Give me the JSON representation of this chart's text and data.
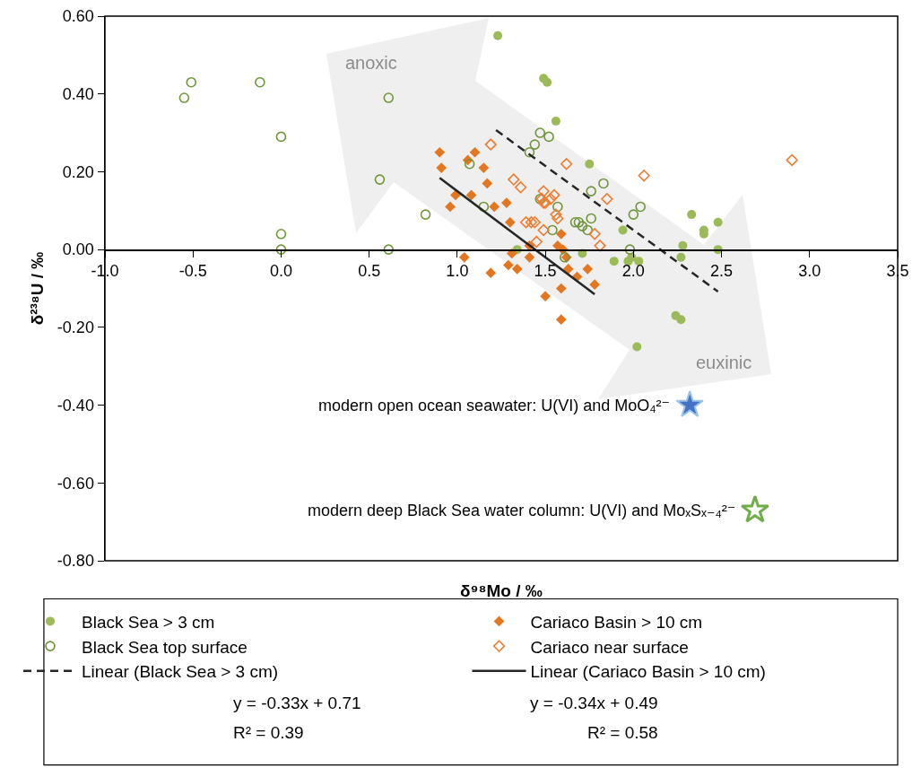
{
  "chart_data": {
    "type": "scatter",
    "xlabel": "δ⁹⁸Mo / ‰",
    "ylabel": "δ²³⁸U / ‰",
    "xlim": [
      -1,
      3.5
    ],
    "xticks": [
      {
        "value": -1,
        "label": "-1.0"
      },
      {
        "value": -0.5,
        "label": "-0.5"
      },
      {
        "value": 0,
        "label": "0.0"
      },
      {
        "value": 0.5,
        "label": "0.5"
      },
      {
        "value": 1,
        "label": "1.0"
      },
      {
        "value": 1.5,
        "label": "1.5"
      },
      {
        "value": 2,
        "label": "2.0"
      },
      {
        "value": 2.5,
        "label": "2.5"
      },
      {
        "value": 3,
        "label": "3.0"
      },
      {
        "value": 3.5,
        "label": "3.5"
      }
    ],
    "ylim": [
      -0.8,
      0.6
    ],
    "yticks": [
      {
        "value": -0.8,
        "label": "-0.80"
      },
      {
        "value": -0.6,
        "label": "-0.60"
      },
      {
        "value": -0.4,
        "label": "-0.40"
      },
      {
        "value": -0.2,
        "label": "-0.20"
      },
      {
        "value": 0,
        "label": "0.00"
      },
      {
        "value": 0.2,
        "label": "0.20"
      },
      {
        "value": 0.4,
        "label": "0.40"
      },
      {
        "value": 0.6,
        "label": "0.60"
      }
    ],
    "grid": false,
    "legend": "bottom",
    "series": [
      {
        "name": "Black Sea > 3 cm",
        "color": "#9bbb59",
        "marker": "circle",
        "x": [
          1.23,
          1.49,
          1.51,
          1.56,
          1.75,
          2.33,
          2.4,
          2.4,
          2.48,
          1.94,
          2.28,
          2.27,
          2.48,
          1.71,
          1.89,
          1.97,
          1.99,
          2.03,
          2.24,
          2.27,
          2.02,
          1.34
        ],
        "values": [
          0.55,
          0.44,
          0.43,
          0.33,
          0.22,
          0.09,
          0.05,
          0.04,
          0.07,
          0.05,
          0.01,
          -0.02,
          0.0,
          -0.01,
          -0.03,
          -0.03,
          -0.02,
          -0.03,
          -0.17,
          -0.18,
          -0.25,
          0.0
        ]
      },
      {
        "name": "Cariaco Basin > 10 cm",
        "color": "#e4761f",
        "marker": "diamond",
        "x": [
          0.9,
          0.91,
          1.1,
          1.06,
          1.15,
          1.17,
          0.99,
          1.08,
          0.96,
          1.21,
          1.28,
          1.3,
          1.59,
          1.57,
          1.6,
          1.04,
          1.19,
          1.29,
          1.34,
          1.31,
          1.41,
          1.41,
          1.63,
          1.74,
          1.68,
          1.59,
          1.78,
          1.5,
          1.59,
          1.62
        ],
        "values": [
          0.25,
          0.21,
          0.25,
          0.23,
          0.21,
          0.17,
          0.14,
          0.14,
          0.11,
          0.11,
          0.12,
          0.07,
          0.04,
          0.01,
          0.0,
          -0.02,
          -0.06,
          -0.04,
          -0.05,
          -0.01,
          -0.02,
          0.01,
          -0.05,
          -0.05,
          -0.07,
          -0.1,
          -0.09,
          -0.12,
          -0.18,
          -0.02
        ]
      },
      {
        "name": "Black Sea top surface",
        "color": "#70963c",
        "marker": "circle-open",
        "x": [
          -0.51,
          -0.55,
          -0.12,
          0,
          0.61,
          0.56,
          0.82,
          0,
          0,
          0.61,
          1.47,
          1.52,
          1.44,
          1.41,
          1.07,
          1.15,
          1.76,
          1.83,
          1.47,
          1.57,
          1.76,
          1.67,
          1.69,
          1.71,
          1.74,
          1.54,
          1.61,
          1.98,
          2.0,
          2.04
        ],
        "values": [
          0.43,
          0.39,
          0.43,
          0.29,
          0.39,
          0.18,
          0.09,
          0.04,
          0,
          0,
          0.3,
          0.29,
          0.27,
          0.25,
          0.22,
          0.11,
          0.15,
          0.17,
          0.13,
          0.11,
          0.08,
          0.07,
          0.07,
          0.06,
          0.05,
          0.05,
          -0.02,
          0,
          0.09,
          0.11
        ]
      },
      {
        "name": "Cariaco near surface",
        "color": "#ed7d31",
        "marker": "diamond-open",
        "x": [
          1.19,
          1.62,
          2.06,
          2.9,
          1.85,
          1.78,
          1.81,
          1.32,
          1.36,
          1.49,
          1.55,
          1.48,
          1.53,
          1.5,
          1.49,
          1.56,
          1.57,
          1.44,
          1.39,
          1.42,
          1.49,
          1.45
        ],
        "values": [
          0.27,
          0.22,
          0.19,
          0.23,
          0.13,
          0.04,
          0.01,
          0.18,
          0.16,
          0.15,
          0.14,
          0.13,
          0.13,
          0.12,
          0.12,
          0.09,
          0.08,
          0.07,
          0.07,
          0.07,
          0.05,
          0.02
        ]
      },
      {
        "name": "Linear (Black Sea > 3 cm)",
        "type": "line",
        "line_style": "dashed",
        "color": "#262626",
        "x": [
          1.22,
          2.48
        ],
        "values": [
          0.307,
          -0.108
        ]
      },
      {
        "name": "Linear (Cariaco Basin > 10 cm)",
        "type": "line",
        "line_style": "solid",
        "color": "#262626",
        "x": [
          0.9,
          1.78
        ],
        "values": [
          0.184,
          -0.115
        ]
      },
      {
        "color": "#4472c4",
        "marker": "star",
        "x": [
          2.32
        ],
        "values": [
          -0.4
        ]
      },
      {
        "color": "#70ad47",
        "marker": "star-open",
        "x": [
          2.69
        ],
        "values": [
          -0.67
        ]
      }
    ],
    "annotations": [
      "anoxic",
      "euxinic",
      "y = -0.33x + 0.71",
      "R² = 0.39",
      "y = -0.34x + 0.49",
      "R² = 0.58",
      {
        "text": "modern open ocean seawater: U(VI) and MoO₄²⁻",
        "x": 2.32,
        "y": -0.4
      },
      {
        "text": "modern deep Black Sea water column: U(VI) and MoₓSₓ₋₄²⁻",
        "x": 2.69,
        "y": -0.67
      }
    ]
  }
}
